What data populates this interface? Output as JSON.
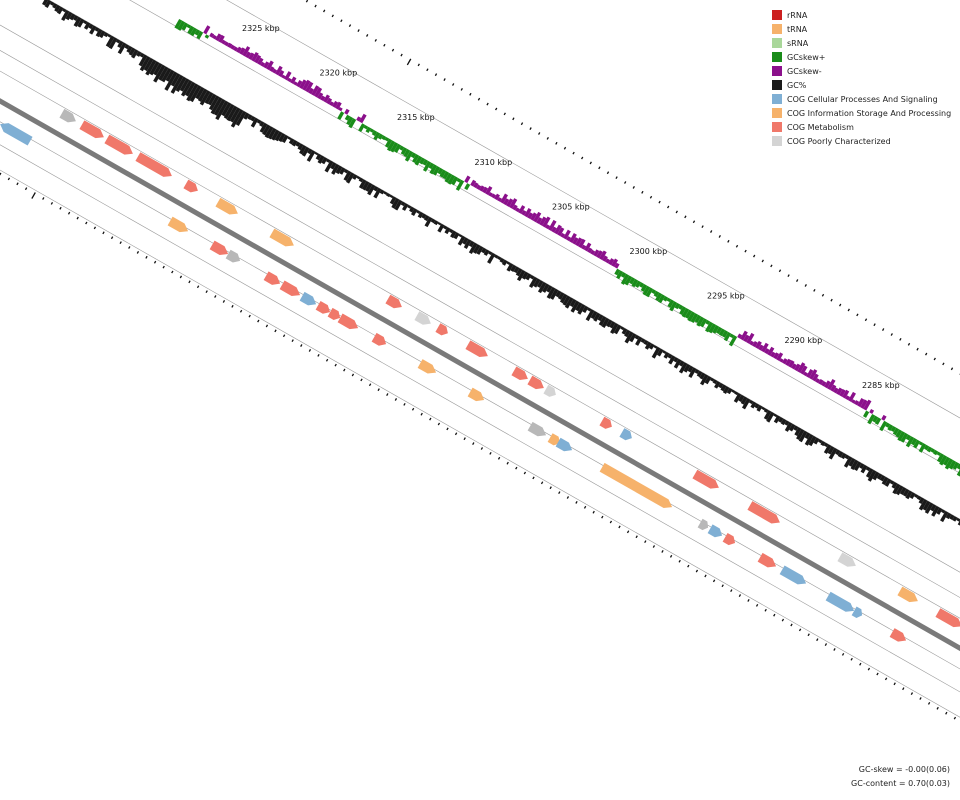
{
  "legend": [
    {
      "label": "rRNA",
      "color": "#cc1f1f"
    },
    {
      "label": "tRNA",
      "color": "#f6b26b"
    },
    {
      "label": "sRNA",
      "color": "#a9d79a"
    },
    {
      "label": "GCskew+",
      "color": "#1a8c1a"
    },
    {
      "label": "GCskew-",
      "color": "#8b108b"
    },
    {
      "label": "GC%",
      "color": "#1a1a1a"
    },
    {
      "label": "COG Cellular Processes And Signaling",
      "color": "#7fafd4"
    },
    {
      "label": "COG Information Storage And Processing",
      "color": "#f6b26b"
    },
    {
      "label": "COG Metabolism",
      "color": "#f0786a"
    },
    {
      "label": "COG Poorly Characterized",
      "color": "#d4d4d4"
    }
  ],
  "ruler": {
    "labels": [
      "2325 kbp",
      "2320 kbp",
      "2315 kbp",
      "2310 kbp",
      "2305 kbp",
      "2300 kbp",
      "2295 kbp",
      "2290 kbp",
      "2285 kbp"
    ]
  },
  "stats": {
    "gc_skew": "GC-skew = -0.00(0.06)",
    "gc_content": "GC-content = 0.70(0.03)"
  },
  "colors": {
    "gc_content": "#1a1a1a",
    "skew_pos": "#1a8c1a",
    "skew_neg": "#8b108b",
    "backbone": "#7a7a7a",
    "guide": "#9a9a9a",
    "ticks": "#111111"
  }
}
